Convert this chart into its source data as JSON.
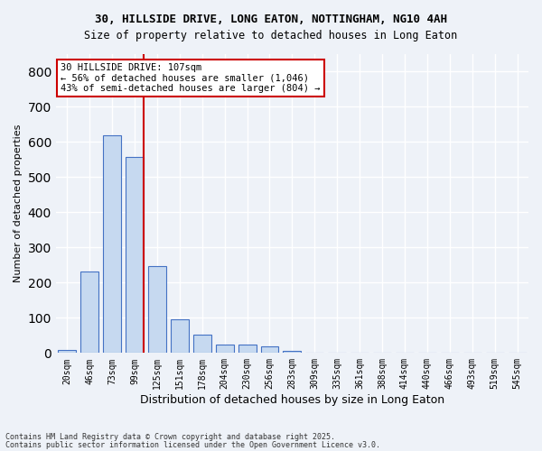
{
  "title_line1": "30, HILLSIDE DRIVE, LONG EATON, NOTTINGHAM, NG10 4AH",
  "title_line2": "Size of property relative to detached houses in Long Eaton",
  "xlabel": "Distribution of detached houses by size in Long Eaton",
  "ylabel": "Number of detached properties",
  "categories": [
    "20sqm",
    "46sqm",
    "73sqm",
    "99sqm",
    "125sqm",
    "151sqm",
    "178sqm",
    "204sqm",
    "230sqm",
    "256sqm",
    "283sqm",
    "309sqm",
    "335sqm",
    "361sqm",
    "388sqm",
    "414sqm",
    "440sqm",
    "466sqm",
    "493sqm",
    "519sqm",
    "545sqm"
  ],
  "values": [
    8,
    232,
    620,
    558,
    248,
    95,
    52,
    25,
    25,
    18,
    5,
    1,
    0,
    0,
    0,
    0,
    0,
    0,
    0,
    0,
    0
  ],
  "bar_color": "#c6d9f0",
  "bar_edge_color": "#4472c4",
  "highlight_bar_index": 3,
  "highlight_line_color": "#cc0000",
  "annotation_text": "30 HILLSIDE DRIVE: 107sqm\n← 56% of detached houses are smaller (1,046)\n43% of semi-detached houses are larger (804) →",
  "annotation_box_color": "#ffffff",
  "annotation_box_edge_color": "#cc0000",
  "ylim": [
    0,
    850
  ],
  "yticks": [
    0,
    100,
    200,
    300,
    400,
    500,
    600,
    700,
    800
  ],
  "footer_line1": "Contains HM Land Registry data © Crown copyright and database right 2025.",
  "footer_line2": "Contains public sector information licensed under the Open Government Licence v3.0.",
  "bg_color": "#eef2f8",
  "plot_bg_color": "#eef2f8",
  "grid_color": "#ffffff"
}
